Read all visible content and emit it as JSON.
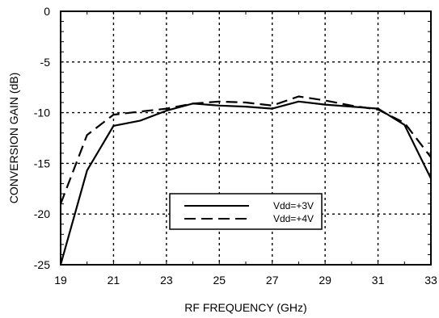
{
  "chart_data": {
    "type": "line",
    "xlabel": "RF FREQUENCY (GHz)",
    "ylabel": "CONVERSION GAIN (dB)",
    "xlim": [
      19,
      33
    ],
    "ylim": [
      -25,
      0
    ],
    "xticks": [
      19,
      21,
      23,
      25,
      27,
      29,
      31,
      33
    ],
    "yticks": [
      0,
      -5,
      -10,
      -15,
      -20,
      -25
    ],
    "grid": true,
    "grid_style": "dotted",
    "legend_position": "lower-center",
    "series": [
      {
        "name": "Vdd=+3V",
        "line_style": "solid",
        "x": [
          19,
          20,
          21,
          22,
          23,
          24,
          25,
          26,
          27,
          28,
          29,
          30,
          31,
          32,
          33
        ],
        "y": [
          -25.0,
          -15.7,
          -11.3,
          -10.8,
          -9.8,
          -9.1,
          -9.3,
          -9.4,
          -9.6,
          -8.9,
          -9.2,
          -9.4,
          -9.6,
          -11.2,
          -16.5
        ]
      },
      {
        "name": "Vdd=+4V",
        "line_style": "dashed",
        "x": [
          19,
          20,
          21,
          22,
          23,
          24,
          25,
          26,
          27,
          28,
          29,
          30,
          31,
          32,
          33
        ],
        "y": [
          -19.0,
          -12.2,
          -10.2,
          -9.9,
          -9.6,
          -9.1,
          -8.9,
          -9.0,
          -9.3,
          -8.4,
          -8.8,
          -9.3,
          -9.7,
          -11.0,
          -14.4
        ]
      }
    ]
  }
}
